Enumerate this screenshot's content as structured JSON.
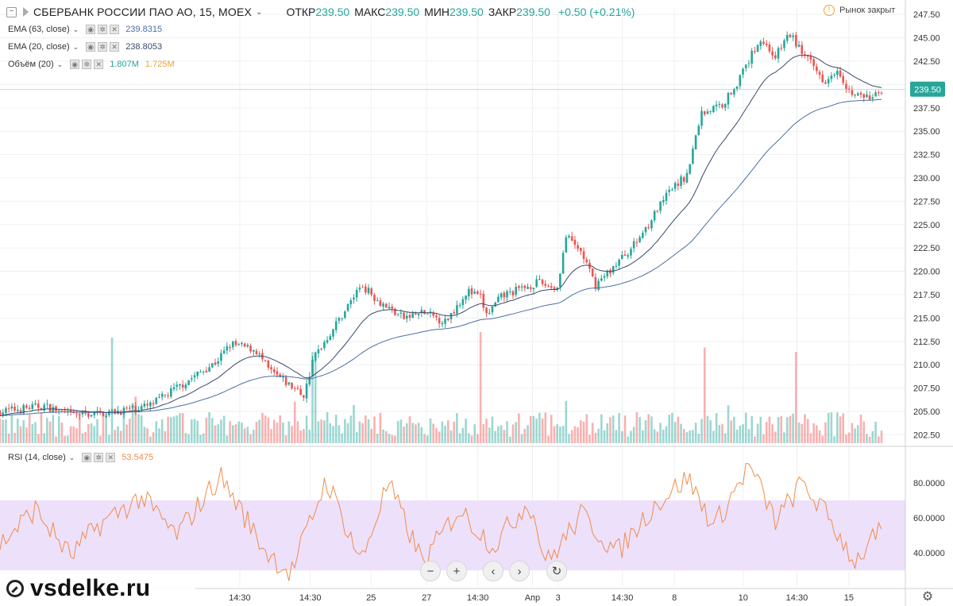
{
  "header": {
    "symbol": "СБЕРБАНК РОССИИ ПАО АО, 15, MOEX",
    "open_label": "ОТКР",
    "open": "239.50",
    "high_label": "МАКС",
    "high": "239.50",
    "low_label": "МИН",
    "low": "239.50",
    "close_label": "ЗАКР",
    "close": "239.50",
    "change": "+0.50 (+0.21%)",
    "market_status": "Рынок закрыт"
  },
  "legend": {
    "ema63": {
      "label": "EMA (63, close)",
      "value": "239.8315"
    },
    "ema20": {
      "label": "EMA (20, close)",
      "value": "238.8053"
    },
    "volume": {
      "label": "Объём (20)",
      "value1": "1.807M",
      "value2": "1.725M"
    },
    "rsi": {
      "label": "RSI (14, close)",
      "value": "53.5475"
    }
  },
  "watermark": "vsdelke.ru",
  "colors": {
    "up": "#26a69a",
    "down": "#ef5350",
    "ema63": "#4a6fa5",
    "ema20": "#3a4a6b",
    "rsi_line": "#f08c4a",
    "rsi_band": "#ede0fb",
    "last_price": "#26a69a"
  },
  "chart_data": [
    {
      "type": "candlestick",
      "interval": "15",
      "price_axis": {
        "ticks": [
          "247.50",
          "245.00",
          "242.50",
          "240.00",
          "237.50",
          "235.00",
          "232.50",
          "230.00",
          "227.50",
          "225.00",
          "222.50",
          "220.00",
          "217.50",
          "215.00",
          "212.50",
          "210.00",
          "207.50",
          "205.00",
          "202.50"
        ],
        "ylim": [
          201.6,
          248.2
        ]
      },
      "last_price": "239.50",
      "time_axis": {
        "labels": [
          "14:30",
          "14:30",
          "25",
          "27",
          "14:30",
          "Апр",
          "3",
          "14:30",
          "8",
          "10",
          "14:30",
          "15"
        ],
        "positions": [
          0.272,
          0.352,
          0.421,
          0.484,
          0.542,
          0.604,
          0.633,
          0.706,
          0.765,
          0.843,
          0.904,
          0.963
        ]
      },
      "anchors": [
        {
          "t": 0.0,
          "p": 205.0
        },
        {
          "t": 0.05,
          "p": 205.6
        },
        {
          "t": 0.08,
          "p": 204.6
        },
        {
          "t": 0.125,
          "p": 204.9
        },
        {
          "t": 0.17,
          "p": 205.6
        },
        {
          "t": 0.21,
          "p": 208.1
        },
        {
          "t": 0.245,
          "p": 210.3
        },
        {
          "t": 0.262,
          "p": 212.2
        },
        {
          "t": 0.29,
          "p": 211.6
        },
        {
          "t": 0.305,
          "p": 209.4
        },
        {
          "t": 0.345,
          "p": 206.7
        },
        {
          "t": 0.356,
          "p": 210.8
        },
        {
          "t": 0.381,
          "p": 214.3
        },
        {
          "t": 0.41,
          "p": 218.6
        },
        {
          "t": 0.43,
          "p": 216.8
        },
        {
          "t": 0.458,
          "p": 215.0
        },
        {
          "t": 0.48,
          "p": 215.6
        },
        {
          "t": 0.505,
          "p": 214.6
        },
        {
          "t": 0.53,
          "p": 217.9
        },
        {
          "t": 0.545,
          "p": 217.2
        },
        {
          "t": 0.552,
          "p": 215.3
        },
        {
          "t": 0.57,
          "p": 217.4
        },
        {
          "t": 0.61,
          "p": 218.8
        },
        {
          "t": 0.632,
          "p": 218.2
        },
        {
          "t": 0.642,
          "p": 223.7
        },
        {
          "t": 0.66,
          "p": 222.0
        },
        {
          "t": 0.675,
          "p": 218.5
        },
        {
          "t": 0.69,
          "p": 219.9
        },
        {
          "t": 0.72,
          "p": 222.9
        },
        {
          "t": 0.76,
          "p": 228.6
        },
        {
          "t": 0.78,
          "p": 230.4
        },
        {
          "t": 0.795,
          "p": 236.9
        },
        {
          "t": 0.82,
          "p": 237.9
        },
        {
          "t": 0.84,
          "p": 240.8
        },
        {
          "t": 0.862,
          "p": 244.9
        },
        {
          "t": 0.88,
          "p": 243.0
        },
        {
          "t": 0.895,
          "p": 245.5
        },
        {
          "t": 0.915,
          "p": 242.8
        },
        {
          "t": 0.935,
          "p": 240.4
        },
        {
          "t": 0.95,
          "p": 241.8
        },
        {
          "t": 0.965,
          "p": 239.0
        },
        {
          "t": 0.99,
          "p": 238.5
        },
        {
          "t": 1.0,
          "p": 239.5
        }
      ],
      "volume_spikes": [
        {
          "t": 0.128,
          "v": 0.95
        },
        {
          "t": 0.356,
          "v": 0.82
        },
        {
          "t": 0.545,
          "v": 1.0
        },
        {
          "t": 0.642,
          "v": 0.38
        },
        {
          "t": 0.8,
          "v": 0.86
        },
        {
          "t": 0.902,
          "v": 0.82
        }
      ]
    },
    {
      "type": "line",
      "name": "RSI (14, close)",
      "y_axis": {
        "ticks": [
          "80.0000",
          "60.0000",
          "40.0000"
        ],
        "ylim": [
          21,
          95
        ]
      },
      "band": [
        30,
        70
      ],
      "anchors": [
        {
          "t": 0.0,
          "v": 45
        },
        {
          "t": 0.04,
          "v": 65
        },
        {
          "t": 0.08,
          "v": 38
        },
        {
          "t": 0.11,
          "v": 55
        },
        {
          "t": 0.16,
          "v": 72
        },
        {
          "t": 0.2,
          "v": 50
        },
        {
          "t": 0.25,
          "v": 84
        },
        {
          "t": 0.3,
          "v": 42
        },
        {
          "t": 0.33,
          "v": 28
        },
        {
          "t": 0.37,
          "v": 82
        },
        {
          "t": 0.41,
          "v": 35
        },
        {
          "t": 0.44,
          "v": 80
        },
        {
          "t": 0.48,
          "v": 34
        },
        {
          "t": 0.52,
          "v": 65
        },
        {
          "t": 0.56,
          "v": 44
        },
        {
          "t": 0.6,
          "v": 70
        },
        {
          "t": 0.62,
          "v": 34
        },
        {
          "t": 0.66,
          "v": 62
        },
        {
          "t": 0.7,
          "v": 40
        },
        {
          "t": 0.74,
          "v": 66
        },
        {
          "t": 0.78,
          "v": 83
        },
        {
          "t": 0.81,
          "v": 55
        },
        {
          "t": 0.85,
          "v": 90
        },
        {
          "t": 0.88,
          "v": 58
        },
        {
          "t": 0.91,
          "v": 80
        },
        {
          "t": 0.94,
          "v": 60
        },
        {
          "t": 0.97,
          "v": 35
        },
        {
          "t": 1.0,
          "v": 53.5
        }
      ]
    }
  ],
  "ui": {
    "zoom_out": "−",
    "zoom_in": "+",
    "scroll_left": "‹",
    "scroll_right": "›",
    "reset": "↻"
  }
}
